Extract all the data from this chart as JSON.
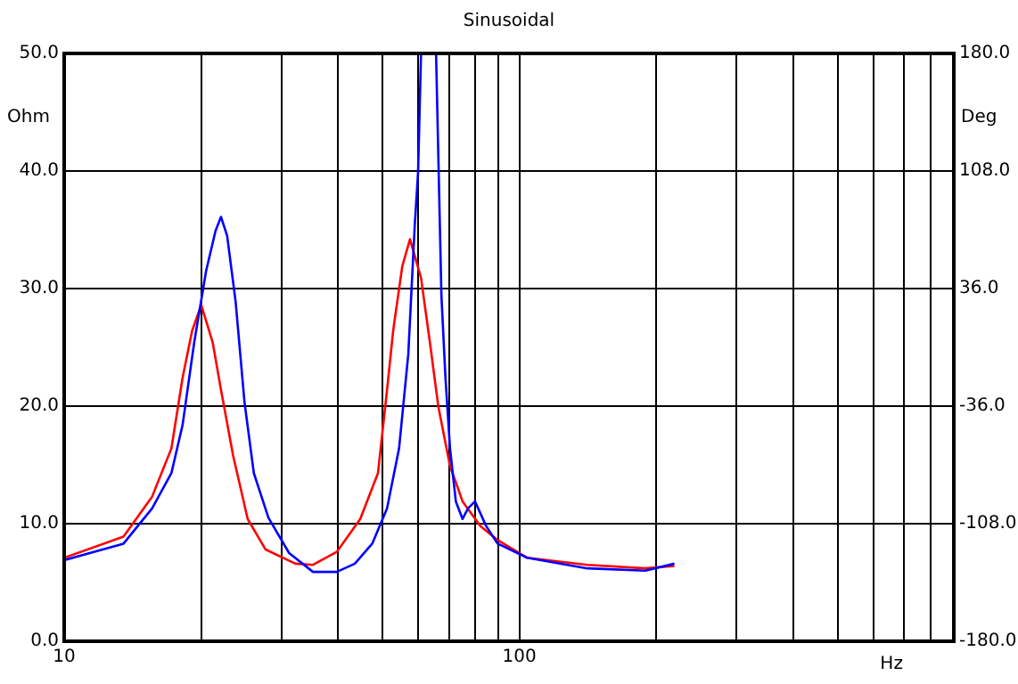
{
  "chart_data": {
    "type": "line",
    "title": "Sinusoidal",
    "xlabel": "Hz",
    "ylabel": "Ohm",
    "y2label": "Deg",
    "log": "x",
    "grid": true,
    "legend": false,
    "marker": "none",
    "line_style": "solid",
    "xlim": [
      10,
      900
    ],
    "xticks": [
      10,
      {
        "value": 20,
        "label": null
      },
      {
        "value": 30,
        "label": null
      },
      {
        "value": 40,
        "label": null
      },
      {
        "value": 50,
        "label": null
      },
      {
        "value": 60,
        "label": null
      },
      {
        "value": 70,
        "label": null
      },
      {
        "value": 80,
        "label": null
      },
      {
        "value": 90,
        "label": null
      },
      100,
      {
        "value": 200,
        "label": null
      },
      {
        "value": 300,
        "label": null
      },
      {
        "value": 400,
        "label": null
      },
      {
        "value": 500,
        "label": null
      },
      {
        "value": 600,
        "label": null
      },
      {
        "value": 700,
        "label": null
      },
      {
        "value": 800,
        "label": null
      },
      {
        "value": 900,
        "label": null
      }
    ],
    "ylim": [
      0,
      50
    ],
    "yticks": [
      {
        "value": 0,
        "label": "0.0"
      },
      {
        "value": 10,
        "label": "10.0"
      },
      {
        "value": 20,
        "label": "20.0"
      },
      {
        "value": 30,
        "label": "30.0"
      },
      {
        "value": 40,
        "label": "40.0"
      },
      {
        "value": 50,
        "label": "50.0"
      }
    ],
    "y2lim": [
      -180,
      180
    ],
    "y2ticks": [
      {
        "value": -180,
        "label": "-180.0"
      },
      {
        "value": -108,
        "label": "-108.0"
      },
      {
        "value": -36,
        "label": "-36.0"
      },
      {
        "value": 36,
        "label": "36.0"
      },
      {
        "value": 108,
        "label": "108.0"
      },
      {
        "value": 180,
        "label": "180.0"
      }
    ],
    "series": [
      {
        "color": "#0000ff",
        "x": [
          10,
          13.5,
          15.6,
          17.2,
          18.2,
          19.3,
          20.5,
          21.5,
          22.1,
          22.8,
          23.8,
          24.9,
          26.1,
          28.1,
          31.2,
          35.2,
          39.7,
          43.5,
          47.5,
          51.2,
          54.4,
          57,
          58.9,
          59.9,
          60.8,
          63,
          65.6,
          67.4,
          68.8,
          70.4,
          72.5,
          75,
          77.1,
          79.9,
          84.5,
          89.6,
          104,
          141,
          189,
          219
        ],
        "values": [
          6.9,
          8.3,
          11.3,
          14.3,
          18.4,
          25.4,
          31.5,
          34.9,
          36.1,
          34.5,
          28.9,
          20.3,
          14.3,
          10.5,
          7.5,
          5.9,
          5.9,
          6.6,
          8.3,
          11.3,
          16.4,
          24.4,
          35.4,
          39.9,
          50,
          null,
          50,
          29.4,
          22.4,
          16.4,
          11.9,
          10.4,
          11.3,
          11.9,
          9.8,
          8.3,
          7.1,
          6.2,
          6,
          6.6
        ]
      },
      {
        "color": "#ff0000",
        "x": [
          10,
          13.5,
          15.6,
          17.2,
          18.2,
          19.1,
          20,
          21.2,
          22.1,
          23.5,
          25.3,
          27.7,
          32.2,
          35.2,
          39.7,
          44.7,
          48.9,
          51.2,
          52.8,
          55.3,
          57.5,
          60.8,
          63.6,
          66.4,
          70.4,
          75,
          82.1,
          89.6,
          104,
          141,
          189,
          219
        ],
        "values": [
          7.1,
          8.9,
          12.3,
          16.4,
          22.4,
          26.4,
          28.6,
          25.4,
          21.4,
          15.8,
          10.4,
          7.8,
          6.6,
          6.5,
          7.6,
          10.4,
          14.3,
          21.4,
          26.4,
          31.9,
          34.2,
          30.9,
          25.4,
          19.9,
          14.9,
          11.9,
          9.8,
          8.6,
          7.1,
          6.5,
          6.2,
          6.4
        ]
      }
    ]
  }
}
